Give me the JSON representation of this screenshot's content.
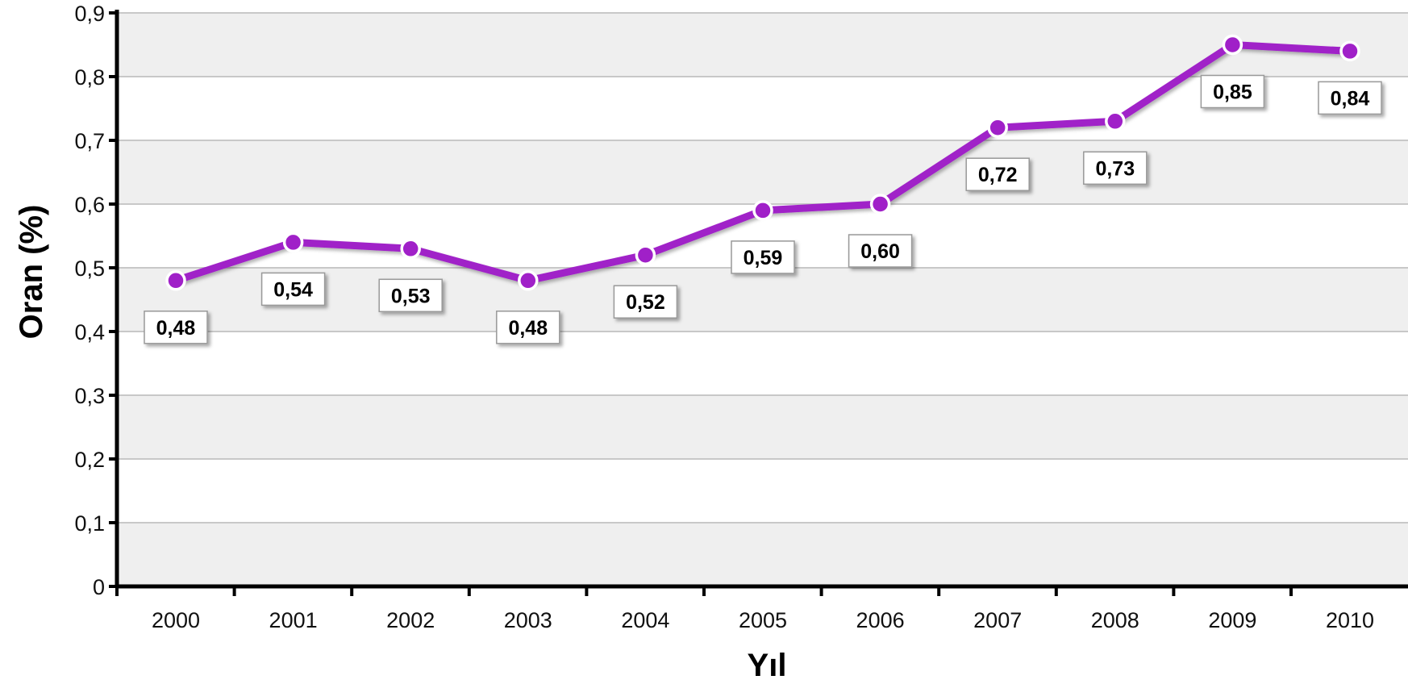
{
  "chart_data": {
    "type": "line",
    "x": [
      "2000",
      "2001",
      "2002",
      "2003",
      "2004",
      "2005",
      "2006",
      "2007",
      "2008",
      "2009",
      "2010"
    ],
    "series": [
      {
        "values": [
          0.48,
          0.54,
          0.53,
          0.48,
          0.52,
          0.59,
          0.6,
          0.72,
          0.73,
          0.85,
          0.84
        ]
      }
    ],
    "data_labels": [
      "0,48",
      "0,54",
      "0,53",
      "0,48",
      "0,52",
      "0,59",
      "0,60",
      "0,72",
      "0,73",
      "0,85",
      "0,84"
    ],
    "y_ticks": [
      "0",
      "0,1",
      "0,2",
      "0,3",
      "0,4",
      "0,5",
      "0,6",
      "0,7",
      "0,8",
      "0,9"
    ],
    "title": "",
    "xlabel": "Yıl",
    "ylabel": "Oran (%)",
    "ylim": [
      0,
      0.9
    ],
    "grid": true,
    "colors": {
      "line": "#a020c8",
      "marker_outline": "#ffffff",
      "plot_band_light": "#ffffff",
      "plot_band_dark": "#efefef",
      "gridline": "#c8c8c8",
      "axis": "#000000"
    }
  }
}
